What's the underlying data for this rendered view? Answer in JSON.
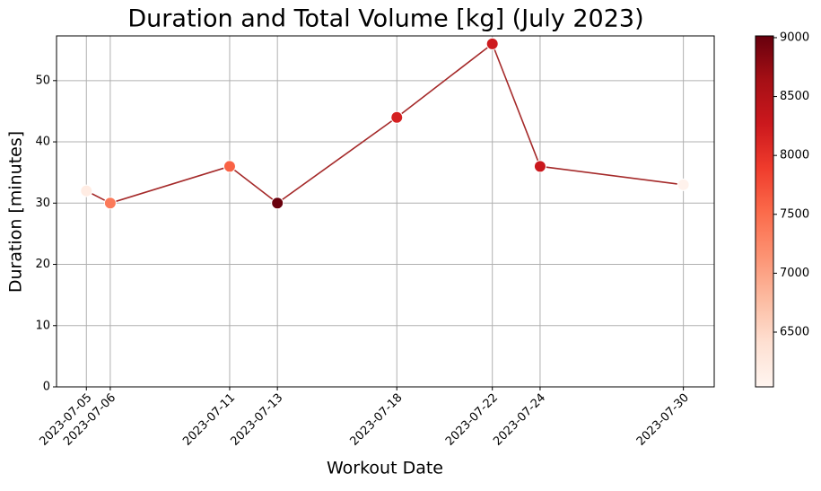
{
  "chart_data": {
    "type": "scatter-line",
    "title": "Duration and Total Volume [kg] (July 2023)",
    "xlabel": "Workout Date",
    "ylabel": "Duration [minutes]",
    "x": [
      "2023-07-05",
      "2023-07-06",
      "2023-07-11",
      "2023-07-13",
      "2023-07-18",
      "2023-07-22",
      "2023-07-24",
      "2023-07-30"
    ],
    "values": [
      32,
      30,
      36,
      30,
      44,
      56,
      36,
      33
    ],
    "color_values": [
      6200,
      7380,
      7585,
      9000,
      8180,
      8250,
      8280,
      6080
    ],
    "line_color": "#a52a2a",
    "colormap": "Reds",
    "xlim": [
      "2023-07-03T18:00",
      "2023-07-31T07:00"
    ],
    "xticks": [
      "2023-07-05",
      "2023-07-06",
      "2023-07-11",
      "2023-07-13",
      "2023-07-18",
      "2023-07-22",
      "2023-07-24",
      "2023-07-30"
    ],
    "ylim": [
      0,
      57.3
    ],
    "yticks": [
      0,
      10,
      20,
      30,
      40,
      50
    ],
    "clim": [
      6035,
      9015
    ],
    "cticks": [
      6500,
      7000,
      7500,
      8000,
      8500,
      9000
    ],
    "grid": true
  }
}
